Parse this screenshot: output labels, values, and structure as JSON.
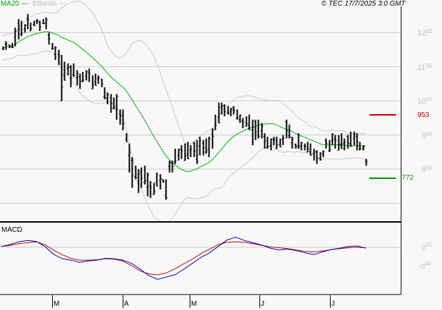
{
  "header": {
    "legend": {
      "ma_label": "MA20",
      "bb_label": "BBands"
    },
    "copyright": "© TEC 17/7/2025 3:0 GMT"
  },
  "colors": {
    "ma20": "#00b000",
    "bbands": "#c8c8c8",
    "bars": "#000000",
    "grid": "#c8c8c8",
    "resistance": "#c00000",
    "support": "#009000",
    "macd": "#0000c0",
    "signal": "#c00000",
    "background": "#f8f8f8"
  },
  "price_axis": {
    "labels": [
      {
        "int": "12",
        "dec": "00",
        "value": 1200
      },
      {
        "int": "11",
        "dec": "00",
        "value": 1100
      },
      {
        "int": "10",
        "dec": "00",
        "value": 1000
      },
      {
        "int": "9",
        "dec": "00",
        "value": 900
      },
      {
        "int": "8",
        "dec": "00",
        "value": 800
      }
    ]
  },
  "levels": {
    "resistance": {
      "label": "953",
      "value": 953
    },
    "support": {
      "label": "772",
      "value": 772
    }
  },
  "macd_panel": {
    "title": "MACD",
    "labels": [
      {
        "text": "0.00",
        "int": "0",
        "dec": "00",
        "value": 0.0
      },
      {
        "text": "-0.40",
        "int": "-0",
        "dec": "40",
        "value": -0.4
      }
    ]
  },
  "x_axis": {
    "ticks": [
      {
        "label": "M",
        "x": 74
      },
      {
        "label": "A",
        "x": 174
      },
      {
        "label": "M",
        "x": 269
      },
      {
        "label": "J",
        "x": 368
      },
      {
        "label": "J",
        "x": 468
      }
    ]
  },
  "chart_data": {
    "type": "ohlc",
    "title": "",
    "subtitle": "© TEC 17/7/2025 3:0 GMT",
    "xlabel": "",
    "ylabel": "",
    "ylim": [
      700,
      1250
    ],
    "grid": true,
    "legend": [
      "MA20",
      "BBands"
    ],
    "x_tick_labels": [
      "M",
      "A",
      "M",
      "J",
      "J"
    ],
    "y_tick_labels": [
      "1200",
      "1100",
      "1000",
      "900",
      "800"
    ],
    "annotations": [
      {
        "text": "953",
        "type": "resistance",
        "value": 953
      },
      {
        "text": "772",
        "type": "support",
        "value": 772
      }
    ],
    "bars_hl": [
      [
        1160,
        1150
      ],
      [
        1175,
        1150
      ],
      [
        1165,
        1155
      ],
      [
        1170,
        1155
      ],
      [
        1215,
        1160
      ],
      [
        1240,
        1180
      ],
      [
        1235,
        1190
      ],
      [
        1225,
        1200
      ],
      [
        1255,
        1210
      ],
      [
        1230,
        1205
      ],
      [
        1235,
        1220
      ],
      [
        1240,
        1225
      ],
      [
        1235,
        1205
      ],
      [
        1240,
        1225
      ],
      [
        1245,
        1210
      ],
      [
        1200,
        1165
      ],
      [
        1170,
        1150
      ],
      [
        1160,
        1120
      ],
      [
        1150,
        1105
      ],
      [
        1135,
        1000
      ],
      [
        1115,
        1060
      ],
      [
        1110,
        1075
      ],
      [
        1105,
        1040
      ],
      [
        1110,
        1070
      ],
      [
        1090,
        1045
      ],
      [
        1080,
        1035
      ],
      [
        1085,
        1055
      ],
      [
        1090,
        1060
      ],
      [
        1095,
        1055
      ],
      [
        1075,
        1035
      ],
      [
        1080,
        1045
      ],
      [
        1075,
        1050
      ],
      [
        1065,
        1040
      ],
      [
        1040,
        1005
      ],
      [
        1025,
        990
      ],
      [
        1020,
        965
      ],
      [
        1010,
        975
      ],
      [
        1020,
        945
      ],
      [
        975,
        930
      ],
      [
        975,
        915
      ],
      [
        905,
        880
      ],
      [
        875,
        790
      ],
      [
        835,
        745
      ],
      [
        810,
        770
      ],
      [
        800,
        730
      ],
      [
        805,
        745
      ],
      [
        810,
        755
      ],
      [
        790,
        720
      ],
      [
        765,
        715
      ],
      [
        760,
        725
      ],
      [
        790,
        750
      ],
      [
        785,
        740
      ],
      [
        770,
        760
      ],
      [
        770,
        710
      ],
      [
        825,
        790
      ],
      [
        825,
        790
      ],
      [
        860,
        815
      ],
      [
        860,
        825
      ],
      [
        870,
        830
      ],
      [
        875,
        825
      ],
      [
        880,
        830
      ],
      [
        870,
        835
      ],
      [
        880,
        835
      ],
      [
        885,
        815
      ],
      [
        895,
        840
      ],
      [
        885,
        840
      ],
      [
        890,
        845
      ],
      [
        895,
        835
      ],
      [
        920,
        860
      ],
      [
        960,
        915
      ],
      [
        995,
        935
      ],
      [
        995,
        960
      ],
      [
        990,
        955
      ],
      [
        985,
        960
      ],
      [
        980,
        955
      ],
      [
        985,
        960
      ],
      [
        975,
        945
      ],
      [
        960,
        935
      ],
      [
        950,
        920
      ],
      [
        955,
        925
      ],
      [
        960,
        915
      ],
      [
        945,
        870
      ],
      [
        945,
        885
      ],
      [
        945,
        890
      ],
      [
        935,
        890
      ],
      [
        905,
        860
      ],
      [
        895,
        860
      ],
      [
        890,
        855
      ],
      [
        895,
        870
      ],
      [
        895,
        860
      ],
      [
        890,
        865
      ],
      [
        900,
        870
      ],
      [
        945,
        890
      ],
      [
        930,
        890
      ],
      [
        895,
        860
      ],
      [
        875,
        860
      ],
      [
        905,
        860
      ],
      [
        880,
        855
      ],
      [
        875,
        855
      ],
      [
        880,
        850
      ],
      [
        875,
        840
      ],
      [
        860,
        825
      ],
      [
        855,
        815
      ],
      [
        850,
        825
      ],
      [
        855,
        835
      ],
      [
        890,
        860
      ],
      [
        885,
        850
      ],
      [
        905,
        870
      ],
      [
        900,
        860
      ],
      [
        900,
        855
      ],
      [
        905,
        860
      ],
      [
        890,
        855
      ],
      [
        900,
        860
      ],
      [
        910,
        865
      ],
      [
        910,
        870
      ],
      [
        905,
        855
      ],
      [
        880,
        855
      ],
      [
        870,
        855
      ],
      [
        830,
        810
      ]
    ],
    "ma20": "approx. 1150 rising to 1200 (Feb), declining to ~780 (late Apr), rising to ~920 (late May), easing to ~855 (Jul)",
    "bbands": "upper ~1230-1260 (Feb) dipping ~1195, peaking ~1275 (Mar) then falling to ~1010 (Apr), rising to ~1005 (May) then narrowing to ~900 (Jul); lower ~1000-1060 (Mar), ~720 (Apr), ~820 (May-Jul)",
    "macd": {
      "series": [
        {
          "name": "MACD",
          "color": "#0000c0"
        },
        {
          "name": "Signal",
          "color": "#c00000"
        }
      ],
      "ylim": [
        -0.75,
        0.3
      ],
      "y_tick_labels": [
        "0.00",
        "-0.40"
      ],
      "macd_values": [
        0.02,
        0.06,
        0.12,
        0.15,
        0.13,
        0.02,
        -0.15,
        -0.25,
        -0.28,
        -0.33,
        -0.3,
        -0.28,
        -0.24,
        -0.25,
        -0.28,
        -0.35,
        -0.48,
        -0.62,
        -0.7,
        -0.65,
        -0.6,
        -0.48,
        -0.35,
        -0.22,
        -0.12,
        0.02,
        0.16,
        0.22,
        0.15,
        0.1,
        0.05,
        -0.02,
        -0.06,
        -0.04,
        -0.07,
        -0.12,
        -0.16,
        -0.1,
        -0.05,
        -0.02,
        0.02,
        0.03,
        -0.02
      ],
      "signal_values": [
        0.02,
        0.04,
        0.08,
        0.1,
        0.12,
        0.06,
        -0.06,
        -0.16,
        -0.24,
        -0.28,
        -0.28,
        -0.27,
        -0.25,
        -0.26,
        -0.3,
        -0.4,
        -0.52,
        -0.58,
        -0.6,
        -0.56,
        -0.47,
        -0.36,
        -0.26,
        -0.14,
        -0.04,
        0.06,
        0.11,
        0.12,
        0.11,
        0.08,
        0.04,
        0.01,
        -0.01,
        -0.03,
        -0.06,
        -0.09,
        -0.1,
        -0.08,
        -0.05,
        -0.03,
        -0.01,
        0.0,
        -0.01
      ]
    }
  }
}
